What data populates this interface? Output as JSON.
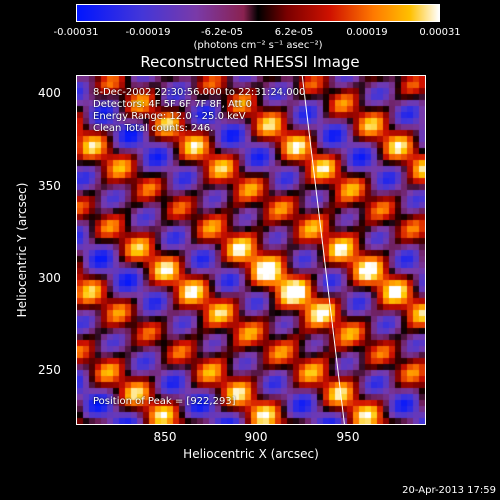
{
  "colorbar": {
    "ticks": [
      "-0.00031",
      "-0.00019",
      "-6.2e-05",
      "6.2e-05",
      "0.00019",
      "0.00031"
    ],
    "units": "(photons cm⁻² s⁻¹ asec⁻²)",
    "colors": [
      "#0015ff",
      "#7a3aa8",
      "#000000",
      "#d01200",
      "#ffc000",
      "#ffffff"
    ]
  },
  "chart_data": {
    "type": "heatmap",
    "title": "Reconstructed RHESSI Image",
    "xlabel": "Heliocentric X (arcsec)",
    "ylabel": "Heliocentric Y (arcsec)",
    "xlim": [
      802,
      992
    ],
    "ylim": [
      213,
      410
    ],
    "xticks": [
      850,
      900,
      950
    ],
    "yticks": [
      250,
      300,
      350,
      400
    ],
    "zrange": [
      -0.00031,
      0.00031
    ],
    "annotations": [
      "8-Dec-2002 22:30:56.000 to 22:31:24.000",
      "Detectors: 4F 5F 6F 7F 8F, Att 0",
      "Energy Range: 12.0 - 25.0 keV",
      "Clean    Total counts: 246.",
      "Position of Peak = [922,293]"
    ],
    "limb_line": {
      "x": [
        925,
        948
      ],
      "y": [
        410,
        213
      ]
    },
    "peak": {
      "x": 922,
      "y": 293
    },
    "grid": false
  },
  "timestamp": "20-Apr-2013 17:59"
}
